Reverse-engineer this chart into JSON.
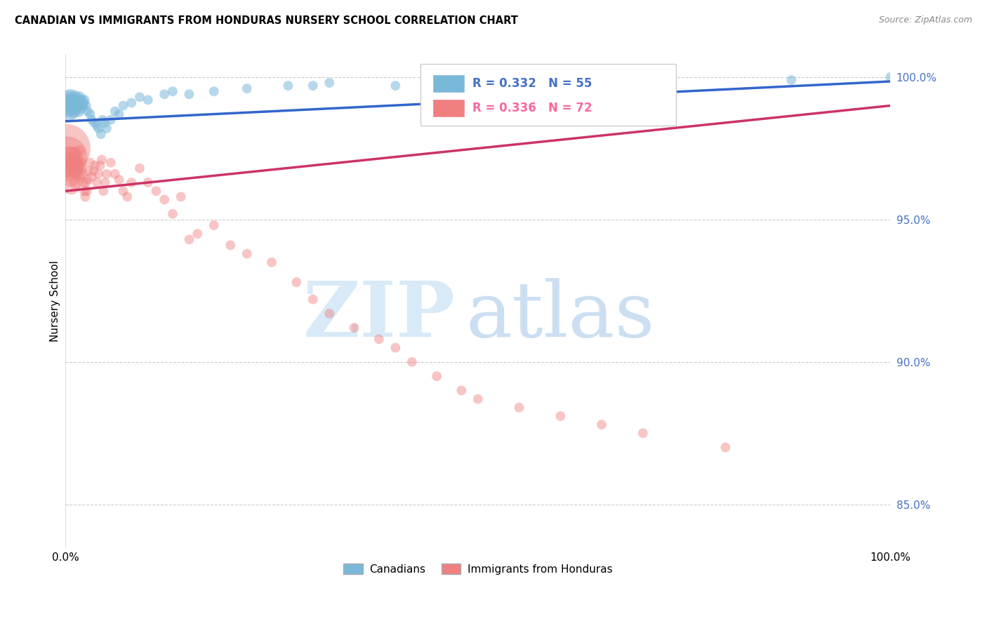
{
  "title": "CANADIAN VS IMMIGRANTS FROM HONDURAS NURSERY SCHOOL CORRELATION CHART",
  "source": "Source: ZipAtlas.com",
  "ylabel": "Nursery School",
  "xlim": [
    0.0,
    1.0
  ],
  "ylim": [
    0.835,
    1.008
  ],
  "y_ticks": [
    0.85,
    0.9,
    0.95,
    1.0
  ],
  "y_tick_labels": [
    "85.0%",
    "90.0%",
    "95.0%",
    "100.0%"
  ],
  "canadian_R": 0.332,
  "canadian_N": 55,
  "honduras_R": 0.336,
  "honduras_N": 72,
  "canadian_color": "#7ab8d9",
  "honduras_color": "#f08080",
  "trend_canadian_color": "#3366cc",
  "trend_honduras_color": "#cc3366",
  "background_color": "#ffffff",
  "grid_color": "#cccccc",
  "legend_label_canadian": "Canadians",
  "legend_label_honduras": "Immigrants from Honduras",
  "canadians_x": [
    0.002,
    0.003,
    0.004,
    0.005,
    0.006,
    0.007,
    0.008,
    0.009,
    0.01,
    0.011,
    0.012,
    0.013,
    0.014,
    0.015,
    0.016,
    0.017,
    0.018,
    0.019,
    0.02,
    0.021,
    0.022,
    0.023,
    0.025,
    0.027,
    0.03,
    0.032,
    0.035,
    0.038,
    0.04,
    0.043,
    0.045,
    0.048,
    0.05,
    0.055,
    0.06,
    0.065,
    0.07,
    0.08,
    0.09,
    0.1,
    0.12,
    0.13,
    0.15,
    0.18,
    0.22,
    0.27,
    0.3,
    0.32,
    0.4,
    0.45,
    0.5,
    0.6,
    0.72,
    0.88,
    1.0
  ],
  "canadians_y": [
    0.99,
    0.988,
    0.992,
    0.991,
    0.993,
    0.989,
    0.99,
    0.992,
    0.988,
    0.991,
    0.993,
    0.989,
    0.99,
    0.992,
    0.988,
    0.993,
    0.991,
    0.989,
    0.992,
    0.99,
    0.991,
    0.992,
    0.99,
    0.988,
    0.987,
    0.985,
    0.984,
    0.983,
    0.982,
    0.98,
    0.985,
    0.984,
    0.982,
    0.985,
    0.988,
    0.987,
    0.99,
    0.991,
    0.993,
    0.992,
    0.994,
    0.995,
    0.994,
    0.995,
    0.996,
    0.997,
    0.997,
    0.998,
    0.997,
    0.998,
    0.998,
    0.997,
    0.998,
    0.999,
    1.0
  ],
  "canadians_size": [
    120,
    90,
    70,
    60,
    55,
    50,
    45,
    42,
    40,
    38,
    36,
    34,
    32,
    30,
    28,
    27,
    26,
    25,
    24,
    23,
    22,
    22,
    21,
    21,
    20,
    20,
    20,
    20,
    20,
    20,
    20,
    20,
    20,
    20,
    20,
    20,
    20,
    20,
    20,
    20,
    20,
    20,
    20,
    20,
    20,
    20,
    20,
    20,
    20,
    20,
    20,
    20,
    20,
    20,
    20
  ],
  "honduras_x": [
    0.001,
    0.002,
    0.003,
    0.004,
    0.005,
    0.006,
    0.007,
    0.008,
    0.009,
    0.01,
    0.011,
    0.012,
    0.013,
    0.014,
    0.015,
    0.016,
    0.017,
    0.018,
    0.019,
    0.02,
    0.021,
    0.022,
    0.023,
    0.024,
    0.025,
    0.026,
    0.027,
    0.028,
    0.03,
    0.032,
    0.034,
    0.036,
    0.038,
    0.04,
    0.042,
    0.044,
    0.046,
    0.048,
    0.05,
    0.055,
    0.06,
    0.065,
    0.07,
    0.075,
    0.08,
    0.09,
    0.1,
    0.11,
    0.12,
    0.13,
    0.14,
    0.15,
    0.16,
    0.18,
    0.2,
    0.22,
    0.25,
    0.28,
    0.3,
    0.32,
    0.35,
    0.38,
    0.4,
    0.42,
    0.45,
    0.48,
    0.5,
    0.55,
    0.6,
    0.65,
    0.7,
    0.8
  ],
  "honduras_y": [
    0.975,
    0.972,
    0.97,
    0.968,
    0.972,
    0.965,
    0.962,
    0.968,
    0.971,
    0.969,
    0.973,
    0.967,
    0.963,
    0.97,
    0.966,
    0.968,
    0.974,
    0.965,
    0.97,
    0.968,
    0.966,
    0.963,
    0.96,
    0.958,
    0.963,
    0.96,
    0.964,
    0.967,
    0.97,
    0.965,
    0.967,
    0.969,
    0.963,
    0.966,
    0.969,
    0.971,
    0.96,
    0.963,
    0.966,
    0.97,
    0.966,
    0.964,
    0.96,
    0.958,
    0.963,
    0.968,
    0.963,
    0.96,
    0.957,
    0.952,
    0.958,
    0.943,
    0.945,
    0.948,
    0.941,
    0.938,
    0.935,
    0.928,
    0.922,
    0.917,
    0.912,
    0.908,
    0.905,
    0.9,
    0.895,
    0.89,
    0.887,
    0.884,
    0.881,
    0.878,
    0.875,
    0.87
  ],
  "honduras_size": [
    500,
    350,
    200,
    150,
    100,
    80,
    70,
    60,
    55,
    50,
    46,
    42,
    38,
    35,
    32,
    30,
    28,
    26,
    25,
    24,
    23,
    22,
    22,
    21,
    21,
    21,
    20,
    20,
    20,
    20,
    20,
    20,
    20,
    20,
    20,
    20,
    20,
    20,
    20,
    20,
    20,
    20,
    20,
    20,
    20,
    20,
    20,
    20,
    20,
    20,
    20,
    20,
    20,
    20,
    20,
    20,
    20,
    20,
    20,
    20,
    20,
    20,
    20,
    20,
    20,
    20,
    20,
    20,
    20,
    20,
    20,
    20
  ],
  "canadian_trend_x0": 0.0,
  "canadian_trend_y0": 0.9845,
  "canadian_trend_x1": 1.0,
  "canadian_trend_y1": 0.9985,
  "honduras_trend_x0": 0.0,
  "honduras_trend_y0": 0.96,
  "honduras_trend_x1": 1.0,
  "honduras_trend_y1": 0.99
}
